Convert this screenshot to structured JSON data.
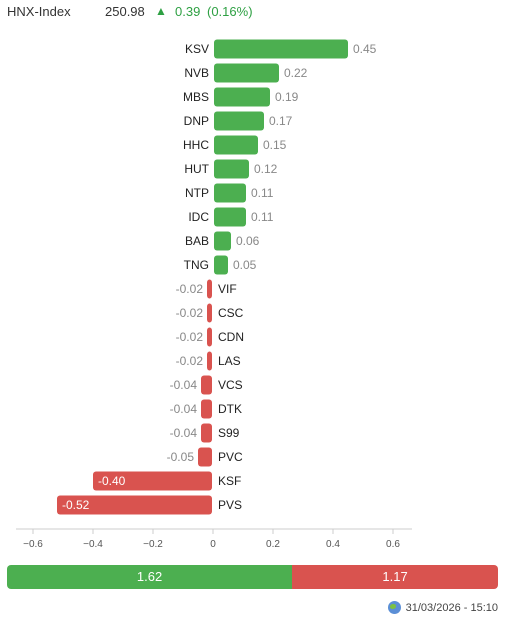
{
  "index": {
    "name": "HNX-Index",
    "value": "250.98",
    "arrow": "▲",
    "change": "0.39",
    "change_pct": "(0.16%)"
  },
  "colors": {
    "up": "#4caf50",
    "down": "#d9534f",
    "axis": "#cccccc"
  },
  "chart_data": {
    "type": "bar",
    "orientation": "horizontal",
    "categories": [
      "KSV",
      "NVB",
      "MBS",
      "DNP",
      "HHC",
      "HUT",
      "NTP",
      "IDC",
      "BAB",
      "TNG",
      "VIF",
      "CSC",
      "CDN",
      "LAS",
      "VCS",
      "DTK",
      "S99",
      "PVC",
      "KSF",
      "PVS"
    ],
    "values": [
      0.45,
      0.22,
      0.19,
      0.17,
      0.15,
      0.12,
      0.11,
      0.11,
      0.06,
      0.05,
      -0.02,
      -0.02,
      -0.02,
      -0.02,
      -0.04,
      -0.04,
      -0.04,
      -0.05,
      -0.4,
      -0.52
    ],
    "value_labels": [
      "0.45",
      "0.22",
      "0.19",
      "0.17",
      "0.15",
      "0.12",
      "0.11",
      "0.11",
      "0.06",
      "0.05",
      "-0.02",
      "-0.02",
      "-0.02",
      "-0.02",
      "-0.04",
      "-0.04",
      "-0.04",
      "-0.05",
      "-0.40",
      "-0.52"
    ],
    "xlim": [
      -0.6,
      0.6
    ],
    "xticks": [
      -0.6,
      -0.4,
      -0.2,
      0,
      0.2,
      0.4,
      0.6
    ],
    "xtick_labels": [
      "−0.6",
      "−0.4",
      "−0.2",
      "0",
      "0.2",
      "0.4",
      "0.6"
    ],
    "grid": false,
    "legend": "none"
  },
  "summary": {
    "up_value": 1.62,
    "down_value": 1.17,
    "up_label": "1.62",
    "down_label": "1.17"
  },
  "footer": {
    "timestamp": "31/03/2026 - 15:10",
    "icon": "globe-icon"
  }
}
